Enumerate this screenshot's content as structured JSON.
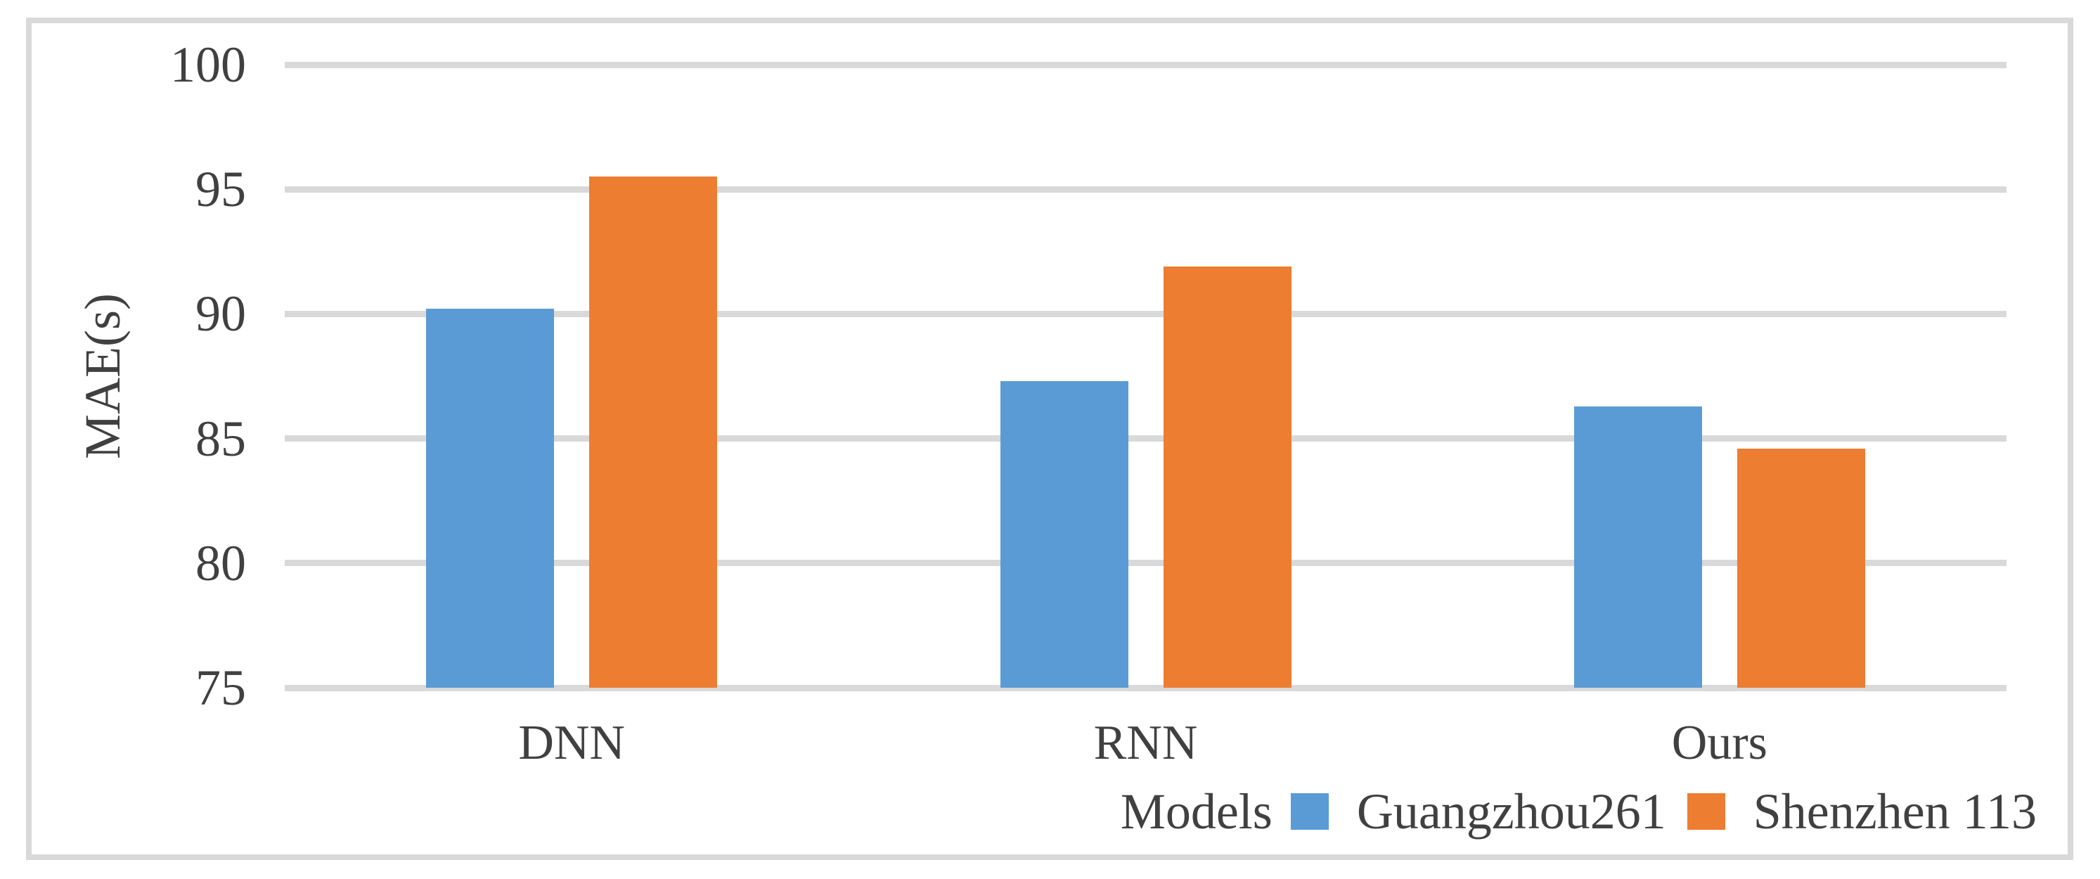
{
  "chart_data": {
    "type": "bar",
    "title": "",
    "categories": [
      "DNN",
      "RNN",
      "Ours"
    ],
    "series": [
      {
        "name": "Guangzhou261",
        "color": "#5B9BD5",
        "values": [
          90.2,
          87.3,
          86.3
        ]
      },
      {
        "name": "Shenzhen 113",
        "color": "#ED7D31",
        "values": [
          95.5,
          91.9,
          84.6
        ]
      }
    ],
    "xlabel": "Models",
    "ylabel": "MAE(s)",
    "ylim": [
      75,
      100
    ],
    "yticks": [
      100,
      95,
      90,
      85,
      80,
      75
    ],
    "grid": true,
    "legend_position": "bottom-right"
  },
  "colors": {
    "background": "#FFFFFF",
    "frame_border": "#D9D9D9",
    "gridline": "#D9D9D9",
    "text": "#404040",
    "series_blue": "#5B9BD5",
    "series_orange": "#ED7D31"
  }
}
